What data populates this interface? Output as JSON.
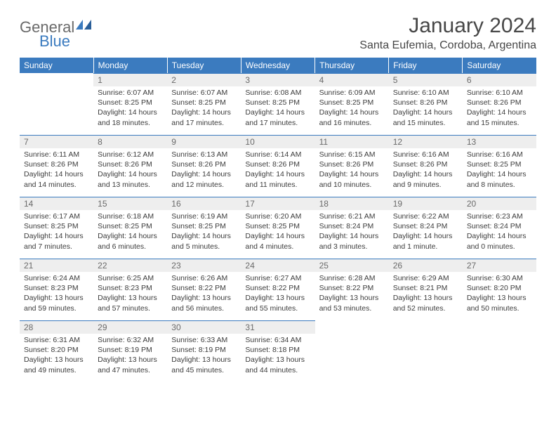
{
  "logo": {
    "text1": "General",
    "text2": "Blue"
  },
  "title": "January 2024",
  "location": "Santa Eufemia, Cordoba, Argentina",
  "colors": {
    "header_bg": "#3b7bbf",
    "header_text": "#ffffff",
    "daynum_bg": "#eeeeee",
    "daynum_border": "#3b7bbf",
    "body_text": "#3c3c3c",
    "logo_gray": "#6a6a6a",
    "logo_blue": "#3b7bbf"
  },
  "weekdays": [
    "Sunday",
    "Monday",
    "Tuesday",
    "Wednesday",
    "Thursday",
    "Friday",
    "Saturday"
  ],
  "weeks": [
    [
      null,
      {
        "n": "1",
        "sr": "6:07 AM",
        "ss": "8:25 PM",
        "dl": "14 hours and 18 minutes."
      },
      {
        "n": "2",
        "sr": "6:07 AM",
        "ss": "8:25 PM",
        "dl": "14 hours and 17 minutes."
      },
      {
        "n": "3",
        "sr": "6:08 AM",
        "ss": "8:25 PM",
        "dl": "14 hours and 17 minutes."
      },
      {
        "n": "4",
        "sr": "6:09 AM",
        "ss": "8:25 PM",
        "dl": "14 hours and 16 minutes."
      },
      {
        "n": "5",
        "sr": "6:10 AM",
        "ss": "8:26 PM",
        "dl": "14 hours and 15 minutes."
      },
      {
        "n": "6",
        "sr": "6:10 AM",
        "ss": "8:26 PM",
        "dl": "14 hours and 15 minutes."
      }
    ],
    [
      {
        "n": "7",
        "sr": "6:11 AM",
        "ss": "8:26 PM",
        "dl": "14 hours and 14 minutes."
      },
      {
        "n": "8",
        "sr": "6:12 AM",
        "ss": "8:26 PM",
        "dl": "14 hours and 13 minutes."
      },
      {
        "n": "9",
        "sr": "6:13 AM",
        "ss": "8:26 PM",
        "dl": "14 hours and 12 minutes."
      },
      {
        "n": "10",
        "sr": "6:14 AM",
        "ss": "8:26 PM",
        "dl": "14 hours and 11 minutes."
      },
      {
        "n": "11",
        "sr": "6:15 AM",
        "ss": "8:26 PM",
        "dl": "14 hours and 10 minutes."
      },
      {
        "n": "12",
        "sr": "6:16 AM",
        "ss": "8:26 PM",
        "dl": "14 hours and 9 minutes."
      },
      {
        "n": "13",
        "sr": "6:16 AM",
        "ss": "8:25 PM",
        "dl": "14 hours and 8 minutes."
      }
    ],
    [
      {
        "n": "14",
        "sr": "6:17 AM",
        "ss": "8:25 PM",
        "dl": "14 hours and 7 minutes."
      },
      {
        "n": "15",
        "sr": "6:18 AM",
        "ss": "8:25 PM",
        "dl": "14 hours and 6 minutes."
      },
      {
        "n": "16",
        "sr": "6:19 AM",
        "ss": "8:25 PM",
        "dl": "14 hours and 5 minutes."
      },
      {
        "n": "17",
        "sr": "6:20 AM",
        "ss": "8:25 PM",
        "dl": "14 hours and 4 minutes."
      },
      {
        "n": "18",
        "sr": "6:21 AM",
        "ss": "8:24 PM",
        "dl": "14 hours and 3 minutes."
      },
      {
        "n": "19",
        "sr": "6:22 AM",
        "ss": "8:24 PM",
        "dl": "14 hours and 1 minute."
      },
      {
        "n": "20",
        "sr": "6:23 AM",
        "ss": "8:24 PM",
        "dl": "14 hours and 0 minutes."
      }
    ],
    [
      {
        "n": "21",
        "sr": "6:24 AM",
        "ss": "8:23 PM",
        "dl": "13 hours and 59 minutes."
      },
      {
        "n": "22",
        "sr": "6:25 AM",
        "ss": "8:23 PM",
        "dl": "13 hours and 57 minutes."
      },
      {
        "n": "23",
        "sr": "6:26 AM",
        "ss": "8:22 PM",
        "dl": "13 hours and 56 minutes."
      },
      {
        "n": "24",
        "sr": "6:27 AM",
        "ss": "8:22 PM",
        "dl": "13 hours and 55 minutes."
      },
      {
        "n": "25",
        "sr": "6:28 AM",
        "ss": "8:22 PM",
        "dl": "13 hours and 53 minutes."
      },
      {
        "n": "26",
        "sr": "6:29 AM",
        "ss": "8:21 PM",
        "dl": "13 hours and 52 minutes."
      },
      {
        "n": "27",
        "sr": "6:30 AM",
        "ss": "8:20 PM",
        "dl": "13 hours and 50 minutes."
      }
    ],
    [
      {
        "n": "28",
        "sr": "6:31 AM",
        "ss": "8:20 PM",
        "dl": "13 hours and 49 minutes."
      },
      {
        "n": "29",
        "sr": "6:32 AM",
        "ss": "8:19 PM",
        "dl": "13 hours and 47 minutes."
      },
      {
        "n": "30",
        "sr": "6:33 AM",
        "ss": "8:19 PM",
        "dl": "13 hours and 45 minutes."
      },
      {
        "n": "31",
        "sr": "6:34 AM",
        "ss": "8:18 PM",
        "dl": "13 hours and 44 minutes."
      },
      null,
      null,
      null
    ]
  ],
  "labels": {
    "sunrise": "Sunrise:",
    "sunset": "Sunset:",
    "daylight": "Daylight:"
  }
}
